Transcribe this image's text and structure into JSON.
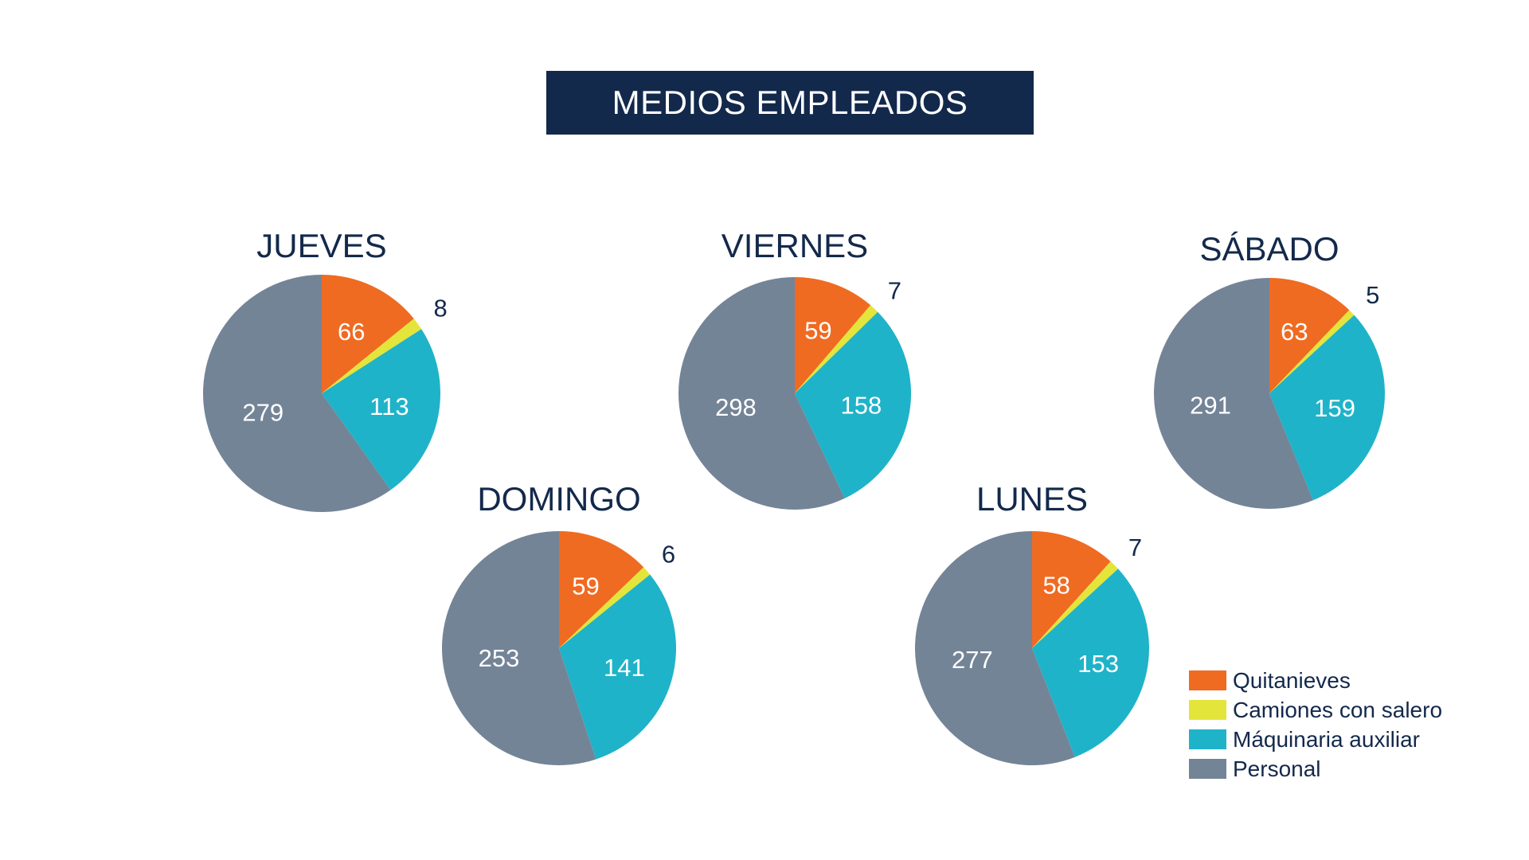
{
  "header": {
    "title": "MEDIOS EMPLEADOS"
  },
  "colors": {
    "Quitanieves": "#ef6b22",
    "Camiones con salero": "#e3e53a",
    "Máquinaria auxiliar": "#1fb3c9",
    "Personal": "#748497",
    "title_background": "#13294b",
    "text_dark": "#13294b"
  },
  "legend": {
    "position": "bottom-right",
    "items": [
      {
        "label": "Quitanieves",
        "color": "#ef6b22"
      },
      {
        "label": "Camiones con salero",
        "color": "#e3e53a"
      },
      {
        "label": "Máquinaria auxiliar",
        "color": "#1fb3c9"
      },
      {
        "label": "Personal",
        "color": "#748497"
      }
    ]
  },
  "chart_data": [
    {
      "type": "pie",
      "title": "JUEVES",
      "categories": [
        "Quitanieves",
        "Camiones con salero",
        "Máquinaria auxiliar",
        "Personal"
      ],
      "values": [
        66,
        8,
        113,
        279
      ]
    },
    {
      "type": "pie",
      "title": "VIERNES",
      "categories": [
        "Quitanieves",
        "Camiones con salero",
        "Máquinaria auxiliar",
        "Personal"
      ],
      "values": [
        59,
        7,
        158,
        298
      ]
    },
    {
      "type": "pie",
      "title": "SÁBADO",
      "categories": [
        "Quitanieves",
        "Camiones con salero",
        "Máquinaria auxiliar",
        "Personal"
      ],
      "values": [
        63,
        5,
        159,
        291
      ]
    },
    {
      "type": "pie",
      "title": "DOMINGO",
      "categories": [
        "Quitanieves",
        "Camiones con salero",
        "Máquinaria auxiliar",
        "Personal"
      ],
      "values": [
        59,
        6,
        141,
        253
      ]
    },
    {
      "type": "pie",
      "title": "LUNES",
      "categories": [
        "Quitanieves",
        "Camiones con salero",
        "Máquinaria auxiliar",
        "Personal"
      ],
      "values": [
        58,
        7,
        153,
        277
      ]
    }
  ]
}
